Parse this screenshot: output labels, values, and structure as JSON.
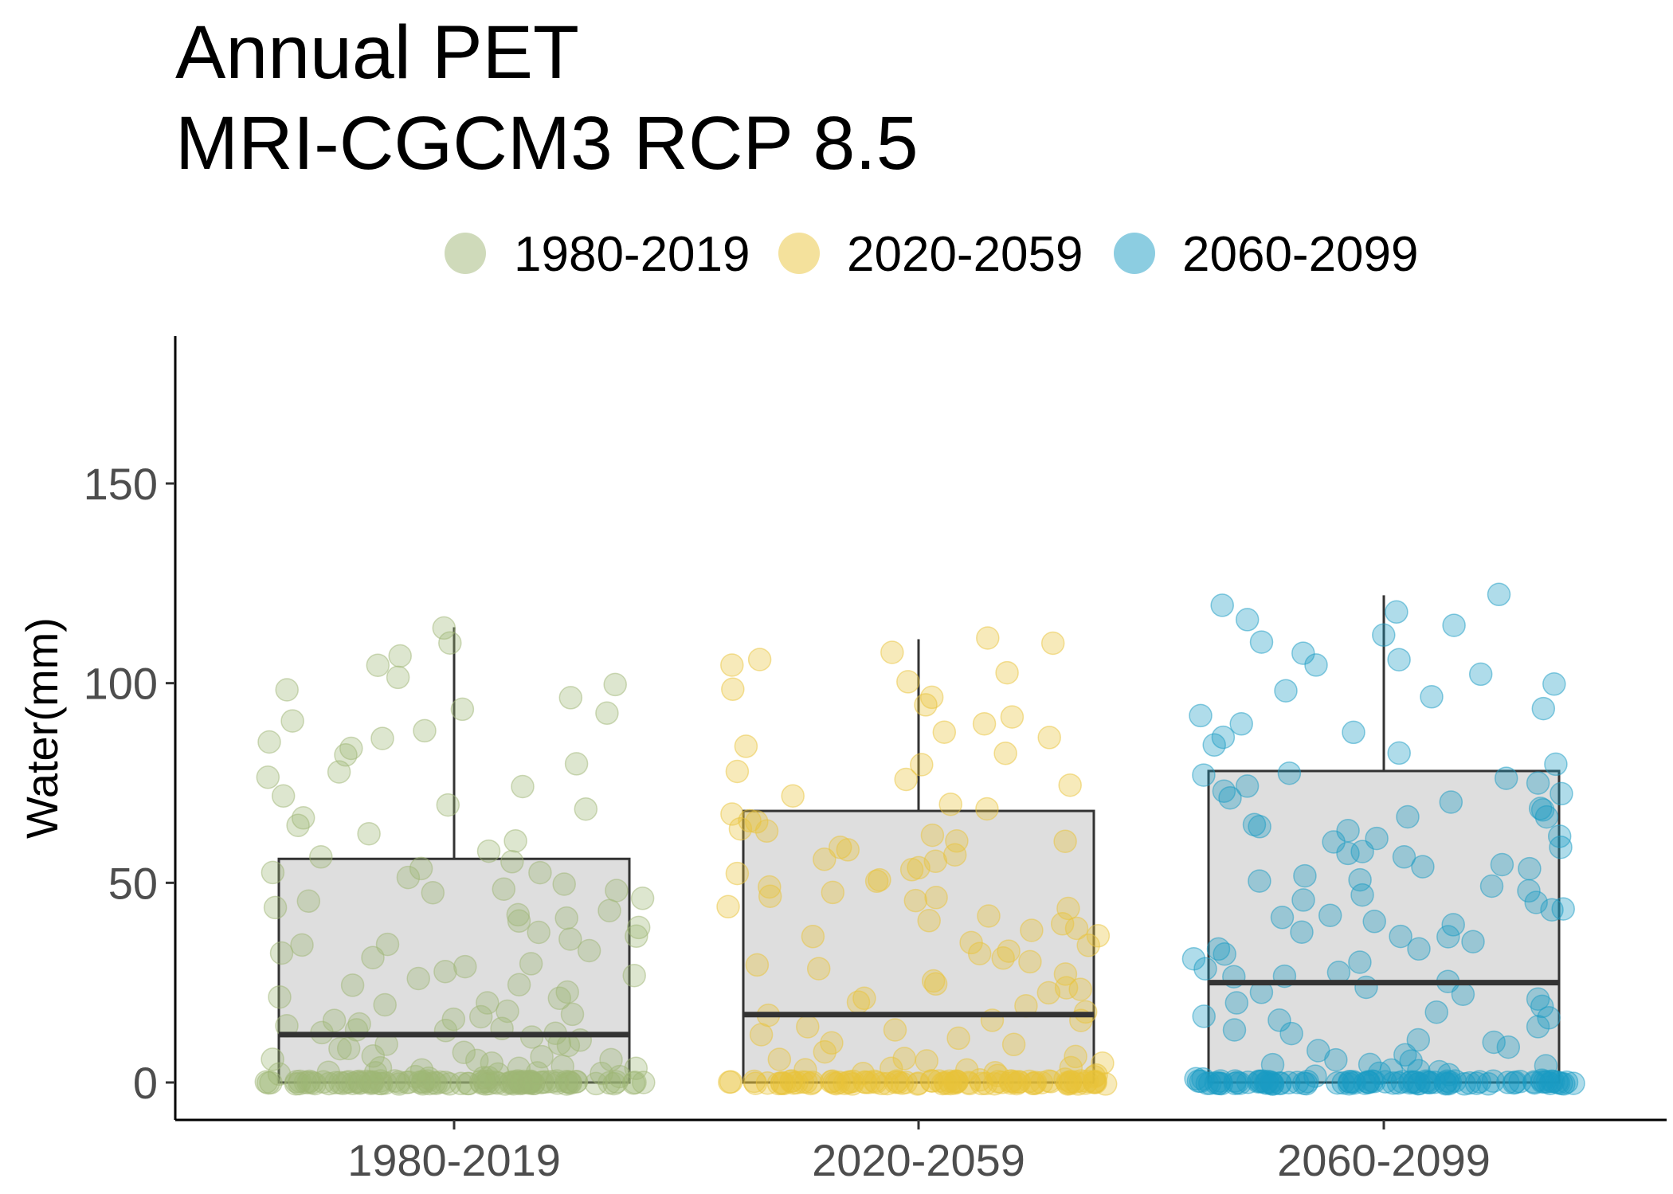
{
  "chart_data": {
    "type": "box",
    "title_lines": [
      "Annual PET",
      "MRI-CGCM3 RCP 8.5"
    ],
    "xlabel": "",
    "ylabel": "Water(mm)",
    "ylim": [
      -9,
      186
    ],
    "yticks": [
      0,
      50,
      100,
      150
    ],
    "grid": false,
    "legend_position": "top",
    "categories": [
      "1980-2019",
      "2020-2059",
      "2060-2099"
    ],
    "colors": {
      "1980-2019": "#9fb675",
      "2020-2059": "#e9c43a",
      "2060-2099": "#1a9bc4"
    },
    "box_fill": "#dedede",
    "box_stroke": "#333333",
    "series": [
      {
        "name": "1980-2019",
        "q1": 0,
        "median": 12,
        "q3": 56,
        "whisker_low": 0,
        "whisker_high": 114,
        "points": [
          0,
          0,
          0,
          0,
          0,
          0,
          0,
          0,
          0,
          0,
          0,
          0,
          0,
          0,
          0,
          0,
          0,
          0,
          0,
          0,
          0,
          0,
          0,
          0,
          0,
          0,
          0,
          0,
          0,
          0,
          0,
          0,
          0,
          0,
          0,
          0,
          0,
          0,
          0,
          0,
          0,
          0,
          0,
          0,
          0,
          0,
          0,
          0,
          0,
          0,
          0,
          0,
          0,
          0,
          0,
          0,
          0,
          0,
          0,
          0,
          0,
          0,
          0,
          0,
          0,
          0,
          0,
          0,
          0,
          0,
          0,
          0,
          0,
          0,
          0,
          0,
          0,
          0,
          0,
          0,
          0,
          0,
          0,
          0,
          0,
          0,
          0,
          0,
          0,
          0,
          0,
          0,
          0,
          0,
          0,
          0,
          0,
          0,
          0,
          0,
          1,
          1,
          1,
          2,
          2,
          2,
          2,
          2,
          3,
          3,
          3,
          3,
          3,
          4,
          4,
          4,
          5,
          5,
          6,
          6,
          7,
          7,
          8,
          8,
          9,
          9,
          10,
          10,
          11,
          11,
          12,
          12,
          13,
          13,
          14,
          14,
          15,
          15,
          16,
          16,
          17,
          18,
          19,
          20,
          21,
          22,
          23,
          24,
          25,
          26,
          27,
          28,
          29,
          30,
          31,
          32,
          33,
          34,
          35,
          36,
          37,
          38,
          39,
          40,
          41,
          42,
          43,
          44,
          45,
          46,
          47,
          48,
          49,
          50,
          51,
          52,
          53,
          54,
          55,
          56,
          58,
          60,
          62,
          64,
          66,
          68,
          70,
          72,
          74,
          76,
          78,
          80,
          82,
          84,
          85,
          86,
          88,
          90,
          92,
          94,
          96,
          98,
          100,
          102,
          104,
          107,
          110,
          114
        ]
      },
      {
        "name": "2020-2059",
        "q1": 0,
        "median": 17,
        "q3": 68,
        "whisker_low": 0,
        "whisker_high": 111,
        "points": [
          0,
          0,
          0,
          0,
          0,
          0,
          0,
          0,
          0,
          0,
          0,
          0,
          0,
          0,
          0,
          0,
          0,
          0,
          0,
          0,
          0,
          0,
          0,
          0,
          0,
          0,
          0,
          0,
          0,
          0,
          0,
          0,
          0,
          0,
          0,
          0,
          0,
          0,
          0,
          0,
          0,
          0,
          0,
          0,
          0,
          0,
          0,
          0,
          0,
          0,
          0,
          0,
          0,
          0,
          0,
          0,
          0,
          0,
          0,
          0,
          0,
          0,
          0,
          0,
          0,
          0,
          0,
          0,
          0,
          0,
          0,
          0,
          0,
          0,
          0,
          0,
          0,
          0,
          0,
          0,
          0,
          0,
          0,
          0,
          0,
          0,
          0,
          0,
          0,
          0,
          1,
          1,
          1,
          2,
          2,
          2,
          3,
          3,
          3,
          4,
          4,
          5,
          5,
          6,
          6,
          7,
          8,
          9,
          10,
          11,
          12,
          13,
          14,
          15,
          16,
          17,
          18,
          19,
          20,
          21,
          22,
          23,
          24,
          25,
          26,
          27,
          28,
          29,
          30,
          31,
          32,
          33,
          34,
          35,
          36,
          37,
          38,
          39,
          40,
          41,
          42,
          43,
          44,
          45,
          46,
          47,
          48,
          49,
          50,
          51,
          52,
          53,
          54,
          55,
          56,
          57,
          58,
          59,
          60,
          61,
          62,
          63,
          64,
          65,
          66,
          67,
          68,
          70,
          72,
          74,
          76,
          78,
          80,
          82,
          84,
          86,
          88,
          90,
          92,
          94,
          96,
          98,
          100,
          102,
          104,
          106,
          108,
          110,
          111
        ]
      },
      {
        "name": "2060-2099",
        "q1": 0,
        "median": 25,
        "q3": 78,
        "whisker_low": 0,
        "whisker_high": 122,
        "points": [
          0,
          0,
          0,
          0,
          0,
          0,
          0,
          0,
          0,
          0,
          0,
          0,
          0,
          0,
          0,
          0,
          0,
          0,
          0,
          0,
          0,
          0,
          0,
          0,
          0,
          0,
          0,
          0,
          0,
          0,
          0,
          0,
          0,
          0,
          0,
          0,
          0,
          0,
          0,
          0,
          0,
          0,
          0,
          0,
          0,
          0,
          0,
          0,
          0,
          0,
          0,
          0,
          0,
          0,
          0,
          0,
          0,
          0,
          0,
          0,
          0,
          0,
          0,
          0,
          0,
          0,
          0,
          0,
          0,
          0,
          0,
          0,
          0,
          0,
          0,
          0,
          0,
          0,
          0,
          0,
          0,
          0,
          0,
          0,
          0,
          0,
          0,
          0,
          0,
          0,
          1,
          1,
          1,
          2,
          2,
          2,
          3,
          3,
          3,
          4,
          4,
          5,
          5,
          6,
          7,
          8,
          9,
          10,
          11,
          12,
          13,
          14,
          15,
          16,
          17,
          18,
          19,
          20,
          21,
          22,
          23,
          24,
          25,
          26,
          27,
          28,
          29,
          30,
          31,
          32,
          33,
          34,
          35,
          36,
          37,
          38,
          39,
          40,
          41,
          42,
          43,
          44,
          45,
          46,
          47,
          48,
          49,
          50,
          51,
          52,
          53,
          54,
          55,
          56,
          57,
          58,
          59,
          60,
          61,
          62,
          63,
          64,
          65,
          66,
          67,
          68,
          69,
          70,
          71,
          72,
          73,
          74,
          75,
          76,
          77,
          78,
          80,
          82,
          84,
          86,
          88,
          90,
          92,
          94,
          96,
          98,
          100,
          102,
          104,
          106,
          108,
          110,
          112,
          114,
          116,
          118,
          120,
          122
        ]
      }
    ]
  }
}
